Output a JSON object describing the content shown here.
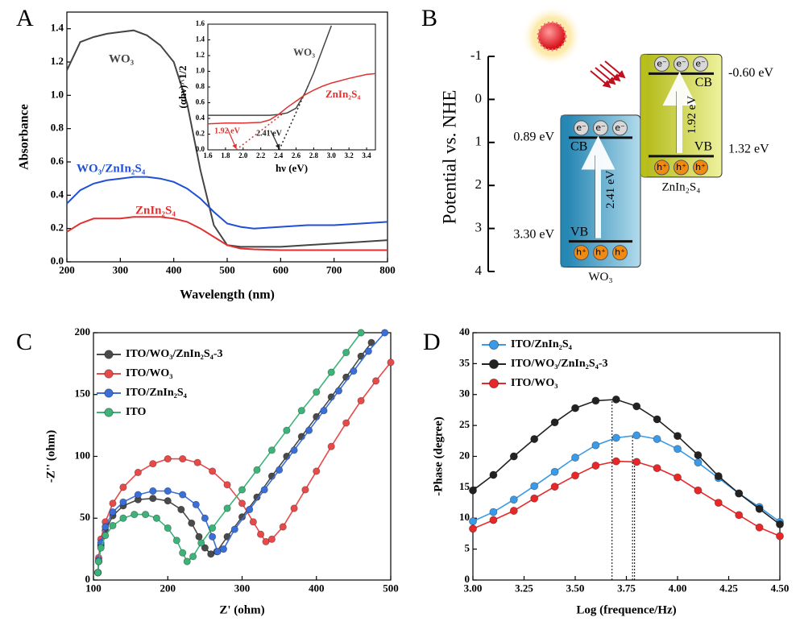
{
  "chart_data": [
    {
      "type": "line",
      "label": "A",
      "xlabel": "Wavelength (nm)",
      "ylabel": "Absorbance",
      "xlim": [
        200,
        800
      ],
      "xticks": [
        200,
        300,
        400,
        500,
        600,
        700,
        800
      ],
      "ylim": [
        0,
        1.5
      ],
      "yticks": [
        {
          "value": 0,
          "label": "0.0"
        },
        0.2,
        0.4,
        0.6,
        0.8,
        {
          "value": 1,
          "label": "1.0"
        },
        1.2,
        1.4
      ],
      "x": [
        200,
        225,
        250,
        275,
        300,
        325,
        350,
        375,
        400,
        425,
        450,
        475,
        500,
        525,
        550,
        600,
        650,
        700,
        750,
        800
      ],
      "series": [
        {
          "name": "WO₃",
          "color": "#444444",
          "values": [
            1.15,
            1.32,
            1.35,
            1.37,
            1.38,
            1.39,
            1.36,
            1.3,
            1.2,
            0.95,
            0.55,
            0.22,
            0.1,
            0.09,
            0.09,
            0.09,
            0.1,
            0.11,
            0.12,
            0.13
          ]
        },
        {
          "name": "WO₃/ZnIn₂S₄",
          "color": "#1f4fd6",
          "values": [
            0.35,
            0.43,
            0.47,
            0.49,
            0.5,
            0.51,
            0.51,
            0.5,
            0.48,
            0.44,
            0.38,
            0.3,
            0.23,
            0.21,
            0.2,
            0.21,
            0.22,
            0.22,
            0.23,
            0.24
          ]
        },
        {
          "name": "ZnIn₂S₄",
          "color": "#e03030",
          "values": [
            0.18,
            0.23,
            0.26,
            0.26,
            0.26,
            0.27,
            0.27,
            0.27,
            0.26,
            0.24,
            0.2,
            0.15,
            0.1,
            0.08,
            0.075,
            0.07,
            0.07,
            0.07,
            0.07,
            0.07
          ]
        }
      ]
    },
    {
      "type": "line",
      "xlabel": "hν (eV)",
      "ylabel": "(αhν)^1/2",
      "xlim": [
        1.6,
        3.5
      ],
      "xticks": [
        1.6,
        1.8,
        {
          "value": 2,
          "label": "2.0"
        },
        2.2,
        2.4,
        2.6,
        2.8,
        {
          "value": 3,
          "label": "3.0"
        },
        3.2,
        3.4
      ],
      "ylim": [
        0,
        1.6
      ],
      "yticks": [
        {
          "value": 0,
          "label": "0.0"
        },
        0.2,
        0.4,
        0.6,
        0.8,
        {
          "value": 1,
          "label": "1.0"
        },
        1.2,
        1.4,
        1.6
      ],
      "x": [
        1.6,
        1.8,
        2.0,
        2.2,
        2.3,
        2.4,
        2.5,
        2.6,
        2.7,
        2.8,
        2.9,
        3.0,
        3.2,
        3.4,
        3.5
      ],
      "series": [
        {
          "name": "WO₃",
          "color": "#444444",
          "values": [
            0.44,
            0.44,
            0.44,
            0.44,
            0.44,
            0.45,
            0.47,
            0.53,
            0.72,
            0.98,
            1.28,
            1.58,
            null,
            null,
            null
          ]
        },
        {
          "name": "ZnIn₂S₄",
          "color": "#e03030",
          "values": [
            0.33,
            0.34,
            0.34,
            0.35,
            0.38,
            0.45,
            0.54,
            0.62,
            0.7,
            0.76,
            0.81,
            0.85,
            0.91,
            0.96,
            0.97
          ]
        }
      ],
      "tangents": [
        {
          "x": [
            1.92,
            2.45
          ],
          "y": [
            0,
            0.46
          ],
          "color": "#e03030"
        },
        {
          "x": [
            2.41,
            2.75
          ],
          "y": [
            0,
            0.85
          ],
          "color": "#222222"
        }
      ],
      "annotations": [
        {
          "text": "1.92 eV",
          "x": 1.92,
          "color": "#e03030"
        },
        {
          "text": "2.41 eV",
          "x": 2.41,
          "color": "#222222"
        }
      ]
    },
    {
      "type": "band-diagram",
      "label": "B",
      "ylabel": "Potential vs. NHE",
      "ylim": [
        -1,
        4
      ],
      "yticks": [
        -1,
        0,
        1,
        2,
        3,
        4
      ],
      "cb_text": "CB",
      "vb_text": "VB",
      "electron": "e⁻",
      "hole": "h⁺",
      "bands": [
        {
          "name": "WO₃",
          "cb": 0.89,
          "vb": 3.3,
          "cb_label": "0.89 eV",
          "vb_label": "3.30 eV",
          "gap_label": "2.41 eV",
          "color": "#2a8ab5"
        },
        {
          "name": "ZnIn₂S₄",
          "cb": -0.6,
          "vb": 1.32,
          "cb_label": "-0.60 eV",
          "vb_label": "1.32 eV",
          "gap_label": "1.92 eV",
          "color": "#bcc21e"
        }
      ]
    },
    {
      "type": "scatter-line",
      "label": "C",
      "xlabel": "Z' (ohm)",
      "ylabel": "-Z'' (ohm)",
      "xlim": [
        100,
        500
      ],
      "xticks": [
        100,
        200,
        300,
        400,
        500
      ],
      "ylim": [
        0,
        200
      ],
      "yticks": [
        0,
        50,
        100,
        150,
        200
      ],
      "series": [
        {
          "name": "ITO/WO₃/ZnIn₂S₄-3",
          "color": "#4a4a4a",
          "x": [
            106,
            107,
            110,
            116,
            126,
            140,
            160,
            180,
            200,
            218,
            232,
            242,
            250,
            258,
            266,
            280,
            300,
            320,
            340,
            360,
            380,
            400,
            420,
            440,
            460,
            474
          ],
          "values": [
            6,
            15,
            28,
            40,
            52,
            60,
            65,
            66,
            64,
            57,
            46,
            35,
            26,
            21,
            23,
            35,
            51,
            67,
            84,
            100,
            116,
            132,
            148,
            164,
            181,
            192
          ]
        },
        {
          "name": "ITO/WO₃",
          "color": "#e84a4a",
          "x": [
            106,
            107,
            110,
            116,
            126,
            140,
            160,
            180,
            200,
            220,
            240,
            260,
            280,
            300,
            315,
            325,
            332,
            340,
            355,
            370,
            385,
            400,
            420,
            440,
            460,
            480,
            500
          ],
          "values": [
            6,
            18,
            33,
            47,
            62,
            75,
            87,
            94,
            98,
            98,
            95,
            88,
            77,
            62,
            47,
            37,
            31,
            33,
            43,
            58,
            73,
            88,
            108,
            127,
            145,
            161,
            176
          ]
        },
        {
          "name": "ITO/ZnIn₂S₄",
          "color": "#3a6fd8",
          "x": [
            106,
            107,
            110,
            116,
            126,
            140,
            160,
            180,
            200,
            220,
            238,
            250,
            260,
            267,
            275,
            290,
            310,
            330,
            350,
            370,
            390,
            410,
            430,
            450,
            470,
            492
          ],
          "values": [
            6,
            16,
            30,
            43,
            55,
            63,
            69,
            72,
            72,
            69,
            61,
            50,
            35,
            23,
            25,
            41,
            57,
            73,
            89,
            105,
            121,
            137,
            153,
            169,
            185,
            200
          ]
        },
        {
          "name": "ITO",
          "color": "#3db37a",
          "x": [
            106,
            107,
            110,
            116,
            126,
            140,
            155,
            170,
            185,
            200,
            212,
            220,
            226,
            234,
            245,
            260,
            280,
            300,
            320,
            340,
            360,
            380,
            400,
            420,
            440,
            460
          ],
          "values": [
            6,
            15,
            26,
            36,
            44,
            50,
            53,
            53,
            50,
            42,
            32,
            22,
            15,
            19,
            30,
            42,
            58,
            73,
            89,
            105,
            121,
            137,
            152,
            168,
            184,
            200
          ]
        }
      ]
    },
    {
      "type": "scatter-line",
      "label": "D",
      "xlabel": "Log (frequence/Hz)",
      "ylabel": "-Phase (degree)",
      "xlim": [
        3,
        4.5
      ],
      "xticks": [
        {
          "value": 3,
          "label": "3.00"
        },
        3.25,
        {
          "value": 3.5,
          "label": "3.50"
        },
        3.75,
        {
          "value": 4,
          "label": "4.00"
        },
        4.25,
        {
          "value": 4.5,
          "label": "4.50"
        }
      ],
      "ylim": [
        0,
        40
      ],
      "yticks": [
        0,
        5,
        10,
        15,
        20,
        25,
        30,
        35,
        40
      ],
      "x": [
        3.0,
        3.1,
        3.2,
        3.3,
        3.4,
        3.5,
        3.6,
        3.7,
        3.8,
        3.9,
        4.0,
        4.1,
        4.2,
        4.3,
        4.4,
        4.5
      ],
      "series": [
        {
          "name": "ITO/ZnIn₂S₄",
          "color": "#3a9ae8",
          "values": [
            9.5,
            11,
            13,
            15.2,
            17.5,
            19.8,
            21.8,
            23,
            23.4,
            22.8,
            21.2,
            19,
            16.5,
            14,
            11.8,
            9.4
          ]
        },
        {
          "name": "ITO/WO₃/ZnIn₂S₄-3",
          "color": "#222222",
          "values": [
            14.5,
            17,
            20,
            22.8,
            25.5,
            27.8,
            29,
            29.2,
            28.1,
            26,
            23.3,
            20.2,
            16.8,
            14,
            11.5,
            9.0
          ]
        },
        {
          "name": "ITO/WO₃",
          "color": "#e82828",
          "values": [
            8.3,
            9.7,
            11.2,
            13.2,
            15.1,
            16.9,
            18.5,
            19.2,
            19.1,
            18.1,
            16.6,
            14.5,
            12.5,
            10.5,
            8.5,
            7.1
          ]
        }
      ],
      "vlines": [
        {
          "x": 3.68,
          "y": 29.2
        },
        {
          "x": 3.78,
          "y": 23.4
        },
        {
          "x": 3.79,
          "y": 19.2
        }
      ]
    }
  ]
}
